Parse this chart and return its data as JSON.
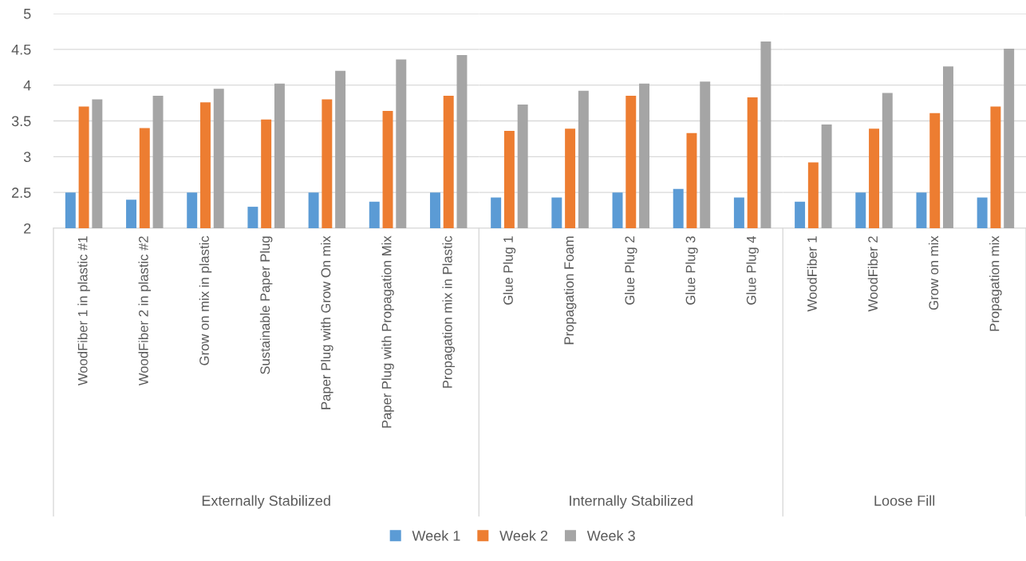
{
  "chart_data": [
    {
      "type": "bar",
      "xlabel": "Externally Stabilized",
      "categories": [
        "WoodFiber 1 in plastic #1",
        "WoodFiber 2 in plastic #2",
        "Grow on mix in plastic",
        "Sustainable Paper Plug",
        "Paper Plug with Grow On mix",
        "Paper Plug with Propagation Mix",
        "Propagation mix in Plastic"
      ],
      "series": [
        {
          "name": "Week 1",
          "color": "#5b9bd5",
          "values": [
            2.5,
            2.4,
            2.5,
            2.3,
            2.5,
            2.37,
            2.5
          ]
        },
        {
          "name": "Week 2",
          "color": "#ed7d31",
          "values": [
            3.7,
            3.4,
            3.76,
            3.52,
            3.8,
            3.64,
            3.85
          ]
        },
        {
          "name": "Week 3",
          "color": "#a5a5a5",
          "values": [
            3.8,
            3.85,
            3.95,
            4.02,
            4.2,
            4.36,
            4.42
          ]
        }
      ],
      "ylim": [
        2,
        5
      ],
      "yticks": [
        2,
        2.5,
        3,
        3.5,
        4,
        4.5,
        5
      ],
      "grid": "y",
      "legend": "bottom"
    },
    {
      "type": "bar",
      "xlabel": "Internally Stabilized",
      "categories": [
        "Glue Plug 1",
        "Propagation Foam",
        "Glue Plug 2",
        "Glue Plug 3",
        "Glue Plug 4"
      ],
      "series": [
        {
          "color": "#5b9bd5",
          "values": [
            2.43,
            2.43,
            2.5,
            2.55,
            2.43
          ]
        },
        {
          "color": "#ed7d31",
          "values": [
            3.36,
            3.39,
            3.85,
            3.33,
            3.83
          ]
        },
        {
          "color": "#a5a5a5",
          "values": [
            3.73,
            3.92,
            4.02,
            4.05,
            4.61
          ]
        }
      ],
      "ylim": [
        2,
        5
      ],
      "yticks": [
        2,
        2.5,
        3,
        3.5,
        4,
        4.5,
        5
      ],
      "grid": "y",
      "tick_labels": "x"
    },
    {
      "type": "bar",
      "xlabel": "Loose Fill",
      "categories": [
        "WoodFiber 1",
        "WoodFiber 2",
        "Grow on mix",
        "Propagation mix"
      ],
      "series": [
        {
          "color": "#5b9bd5",
          "values": [
            2.37,
            2.5,
            2.5,
            2.43
          ]
        },
        {
          "color": "#ed7d31",
          "values": [
            2.92,
            3.39,
            3.61,
            3.7
          ]
        },
        {
          "color": "#a5a5a5",
          "values": [
            3.45,
            3.89,
            4.26,
            4.51
          ]
        }
      ],
      "ylim": [
        2,
        5
      ],
      "yticks": [
        2,
        2.5,
        3,
        3.5,
        4,
        4.5,
        5
      ],
      "grid": "y",
      "tick_labels": "x"
    }
  ]
}
